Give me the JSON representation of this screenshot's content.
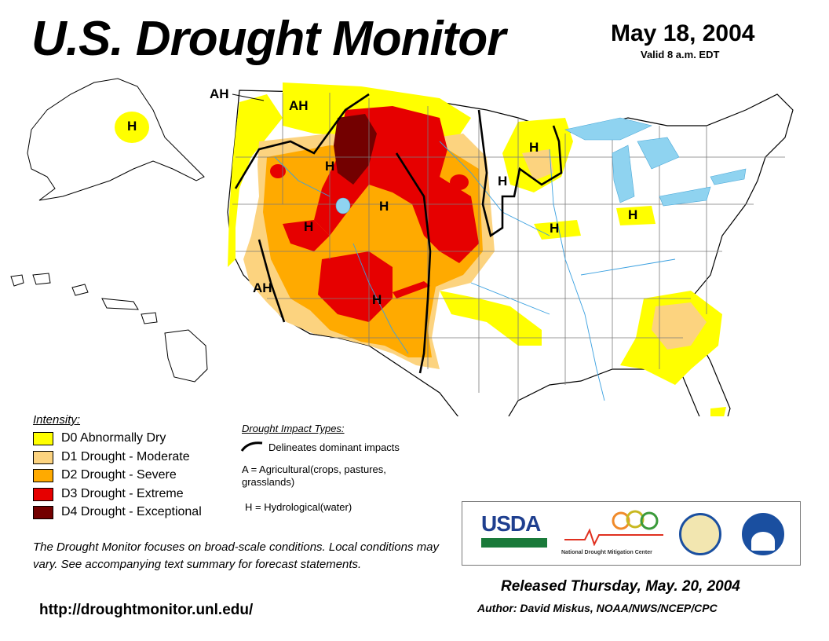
{
  "header": {
    "title": "U.S. Drought Monitor",
    "date": "May 18, 2004",
    "valid": "Valid 8 a.m. EDT"
  },
  "legend": {
    "title": "Intensity:",
    "items": [
      {
        "label": "D0 Abnormally Dry",
        "color": "#ffff00"
      },
      {
        "label": "D1 Drought - Moderate",
        "color": "#fcd37f"
      },
      {
        "label": "D2 Drought - Severe",
        "color": "#ffaa00"
      },
      {
        "label": "D3 Drought - Extreme",
        "color": "#e60000"
      },
      {
        "label": "D4 Drought - Exceptional",
        "color": "#730000"
      }
    ]
  },
  "impacts": {
    "title": "Drought Impact Types:",
    "line": "Delineates dominant impacts",
    "a": "A = Agricultural(crops, pastures, grasslands)",
    "h": "H = Hydrological(water)"
  },
  "note": "The Drought Monitor focuses on broad-scale conditions. Local conditions may vary. See accompanying text summary for forecast statements.",
  "url": "http://droughtmonitor.unl.edu/",
  "footer": {
    "released": "Released Thursday, May. 20, 2004",
    "author": "Author: David Miskus, NOAA/NWS/NCEP/CPC"
  },
  "logos": {
    "usda": "USDA",
    "ndmc": "National Drought Mitigation Center",
    "usda_color": "#1f3f8f",
    "noaa_color": "#1a4fa0"
  },
  "map_labels": {
    "ah": "AH",
    "h": "H"
  }
}
